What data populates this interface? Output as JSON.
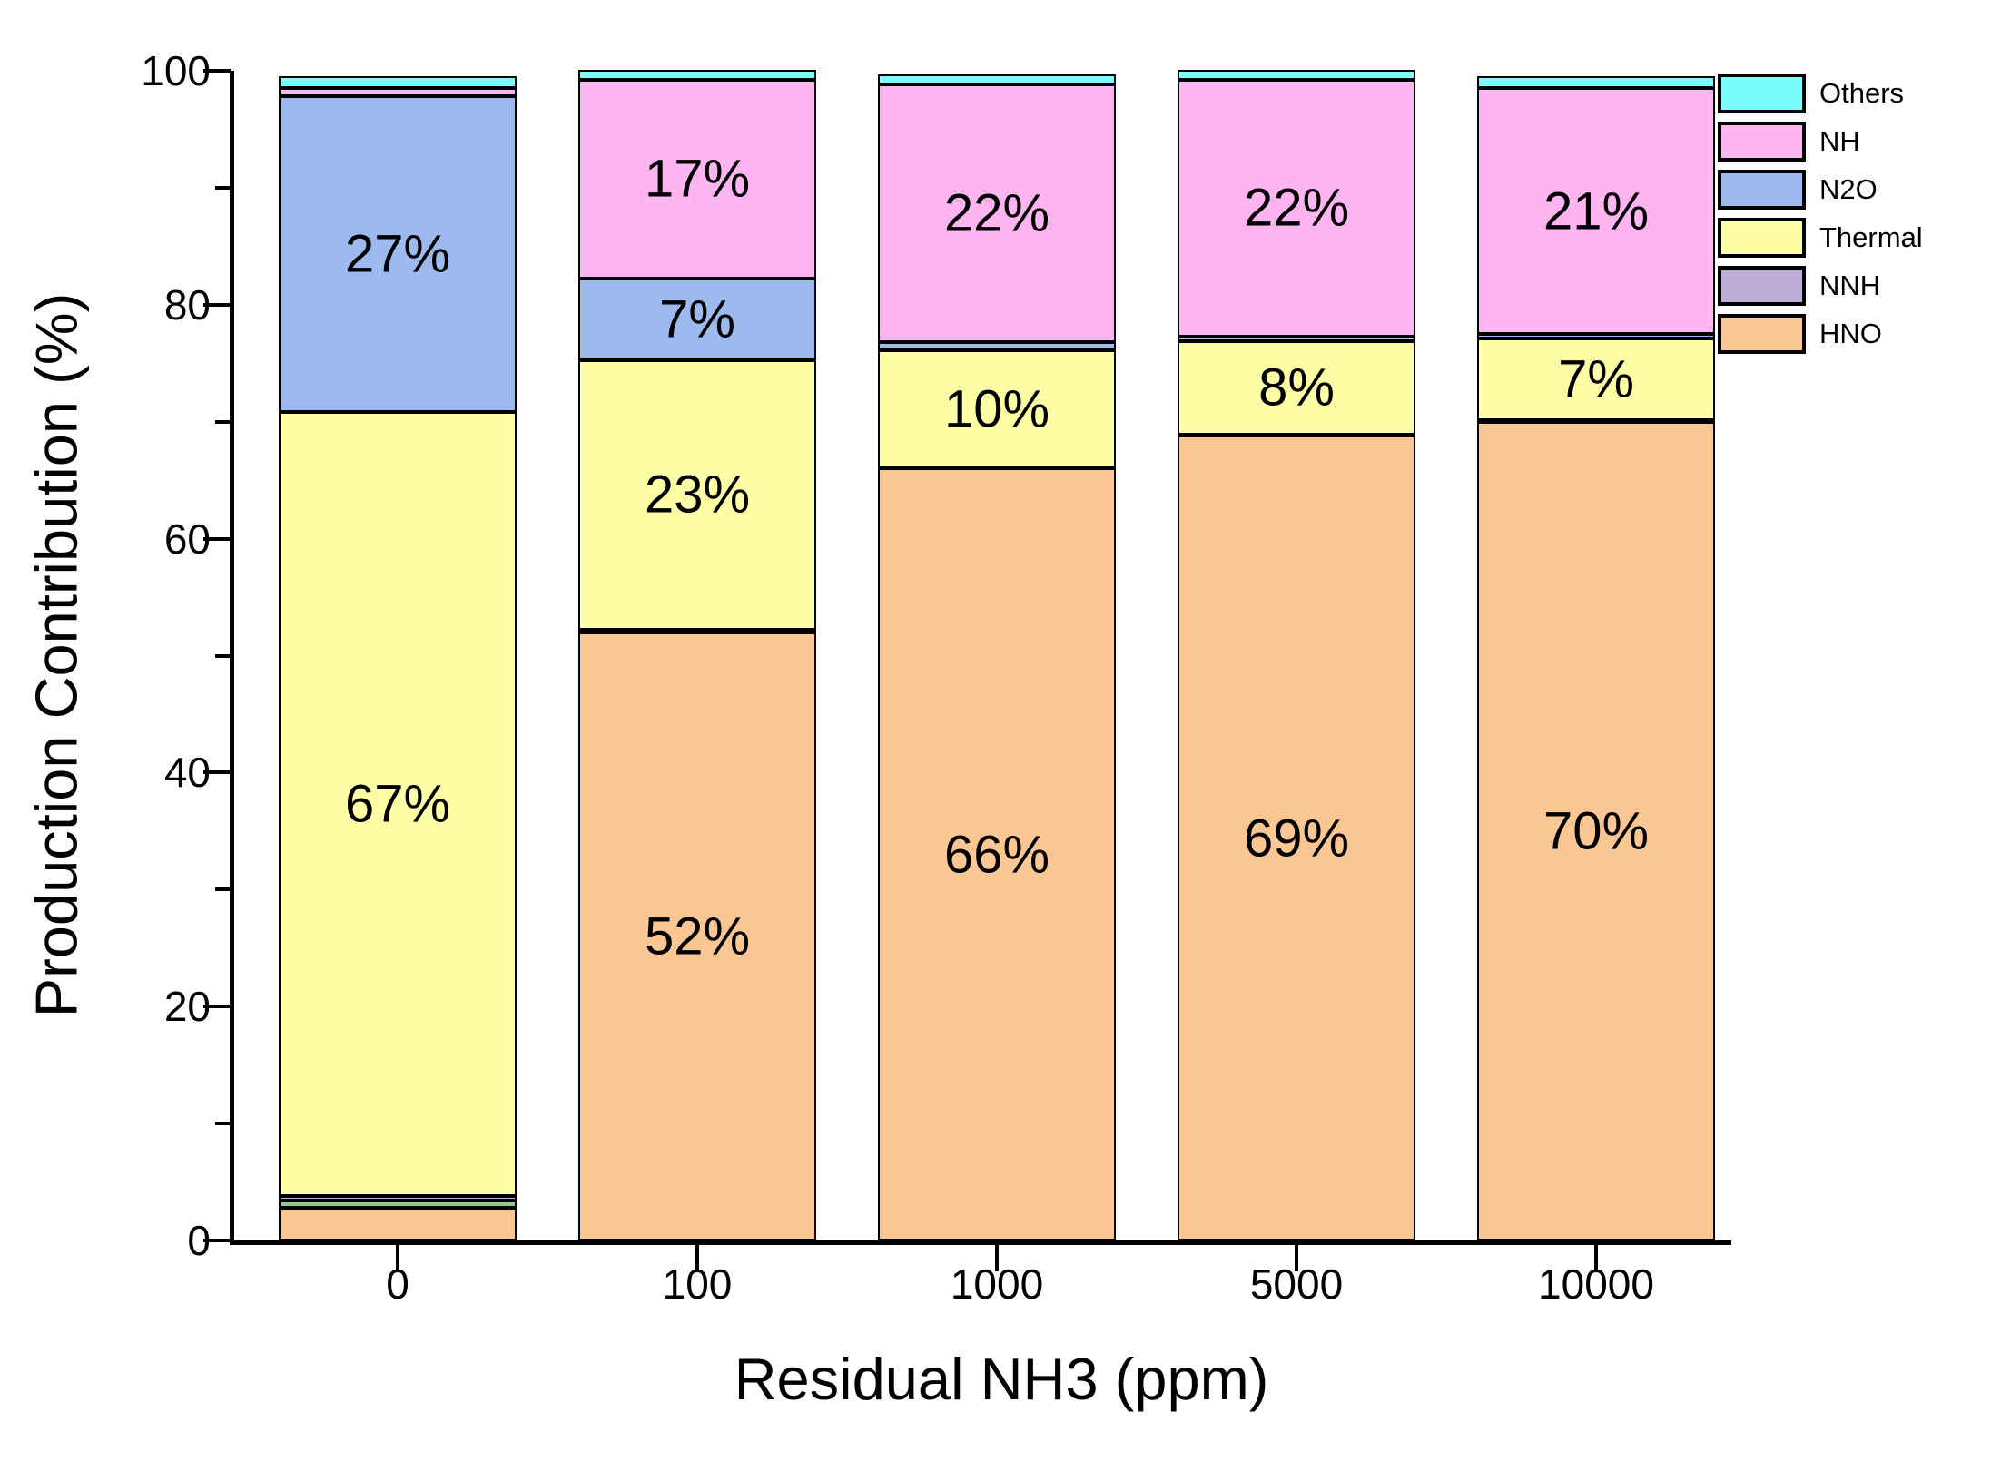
{
  "figure": {
    "background_color": "#ffffff",
    "border_color": "#000000",
    "y_axis": {
      "title": "Production Contribution (%)",
      "major_tick_labels": [
        "0",
        "20",
        "40",
        "60",
        "80",
        "100"
      ],
      "major_tick_values": [
        0,
        20,
        40,
        60,
        80,
        100
      ],
      "minor_tick_values": [
        10,
        30,
        50,
        70,
        90
      ]
    },
    "x_axis": {
      "title": "Residual NH3 (ppm)",
      "tick_labels": [
        "0",
        "100",
        "1000",
        "5000",
        "10000"
      ]
    },
    "legend": {
      "items": [
        {
          "label": "Others",
          "color": "#7BFDFD"
        },
        {
          "label": "NH",
          "color": "#FDB5F2"
        },
        {
          "label": "N2O",
          "color": "#9DBAEE"
        },
        {
          "label": "Thermal",
          "color": "#FEFEA6"
        },
        {
          "label": "NNH",
          "color": "#BFAED8"
        },
        {
          "label": "HNO",
          "color": "#FAC794"
        }
      ]
    }
  },
  "chart_data": {
    "type": "bar",
    "stacked": true,
    "title": "",
    "xlabel": "Residual NH3 (ppm)",
    "ylabel": "Production Contribution (%)",
    "ylim": [
      0,
      100
    ],
    "grid": false,
    "legend_position": "right",
    "categories": [
      "0",
      "100",
      "1000",
      "5000",
      "10000"
    ],
    "series_bottom_to_top": [
      {
        "name": "HNO",
        "color": "#FAC794",
        "values": [
          2.8,
          52,
          66,
          68.8,
          70
        ],
        "labels": [
          null,
          "52%",
          "66%",
          "69%",
          "70%"
        ]
      },
      {
        "name": "unlabeled-green",
        "color": "#8FC98F",
        "values": [
          0.6,
          0,
          0,
          0,
          0
        ],
        "labels": [
          null,
          null,
          null,
          null,
          null
        ]
      },
      {
        "name": "NNH",
        "color": "#BFAED8",
        "values": [
          0.4,
          0.25,
          0.1,
          0.1,
          0.1
        ],
        "labels": [
          null,
          null,
          null,
          null,
          null
        ]
      },
      {
        "name": "Thermal",
        "color": "#FEFEA6",
        "values": [
          67,
          23,
          10,
          8,
          7
        ],
        "labels": [
          "67%",
          "23%",
          "10%",
          "8%",
          "7%"
        ]
      },
      {
        "name": "N2O",
        "color": "#9DBAEE",
        "values": [
          27,
          7,
          0.7,
          0.35,
          0.4
        ],
        "labels": [
          "27%",
          "7%",
          null,
          null,
          null
        ]
      },
      {
        "name": "NH",
        "color": "#FDB5F2",
        "values": [
          0.7,
          17,
          22,
          22,
          21
        ],
        "labels": [
          null,
          "17%",
          "22%",
          "22%",
          "21%"
        ]
      },
      {
        "name": "Others",
        "color": "#7BFDFD",
        "values": [
          1.0,
          0.8,
          0.9,
          0.85,
          1.0
        ],
        "labels": [
          null,
          null,
          null,
          null,
          null
        ]
      }
    ]
  }
}
